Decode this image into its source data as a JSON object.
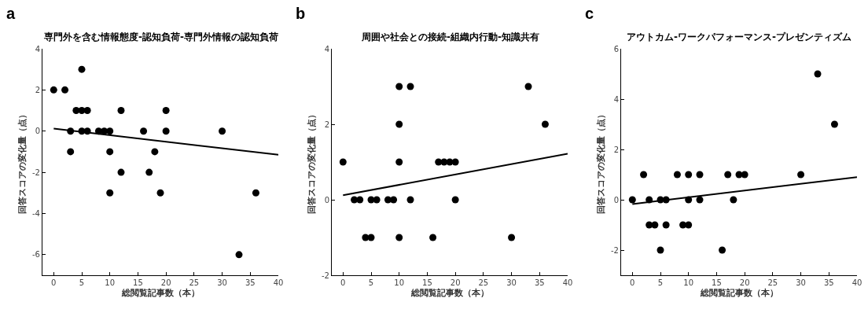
{
  "chart_data": [
    {
      "type": "scatter",
      "title": "専門外を含む情報態度‐認知負荷‐専門外情報の認知負荷",
      "xlabel": "総閲覧記事数（本）",
      "ylabel": "回答スコアの変化量（点）",
      "annotations": [
        "a"
      ],
      "xlim": [
        -2,
        40
      ],
      "xticks": [
        0,
        5,
        10,
        15,
        20,
        25,
        30,
        35,
        40
      ],
      "ylim": [
        -7,
        4
      ],
      "yticks": [
        -6,
        -4,
        -2,
        0,
        2,
        4
      ],
      "series": [
        {
          "type": "scatter",
          "color": "#000000",
          "marker": "circle",
          "x": [
            0,
            2,
            5,
            4,
            5,
            6,
            3,
            5,
            6,
            8,
            9,
            10,
            3,
            12,
            10,
            12,
            10,
            16,
            20,
            20,
            18,
            17,
            19,
            30,
            36,
            33
          ],
          "values": [
            2,
            2,
            3,
            1,
            1,
            1,
            0,
            0,
            0,
            0,
            0,
            0,
            -1,
            1,
            -1,
            -2,
            -3,
            0,
            1,
            0,
            -1,
            -2,
            -3,
            0,
            -3,
            -6
          ]
        },
        {
          "type": "line",
          "color": "#000000",
          "marker": "none",
          "line_style": "solid",
          "x": [
            0,
            40
          ],
          "values": [
            0.12,
            -1.15
          ]
        }
      ]
    },
    {
      "type": "scatter",
      "title": "周囲や社会との接続‐組織内行動‐知識共有",
      "xlabel": "総閲覧記事数（本）",
      "ylabel": "回答スコアの変化量（点）",
      "annotations": [
        "b"
      ],
      "xlim": [
        -2,
        40
      ],
      "xticks": [
        0,
        5,
        10,
        15,
        20,
        25,
        30,
        35,
        40
      ],
      "ylim": [
        -2,
        4
      ],
      "yticks": [
        -2,
        0,
        2,
        4
      ],
      "series": [
        {
          "type": "scatter",
          "color": "#000000",
          "marker": "circle",
          "x": [
            0,
            2,
            3,
            5,
            6,
            8,
            9,
            4,
            5,
            10,
            10,
            10,
            10,
            12,
            12,
            16,
            17,
            18,
            19,
            20,
            20,
            30,
            33,
            36
          ],
          "values": [
            1,
            0,
            0,
            0,
            0,
            0,
            0,
            -1,
            -1,
            3,
            2,
            1,
            -1,
            3,
            0,
            -1,
            1,
            1,
            1,
            1,
            0,
            -1,
            3,
            2
          ]
        },
        {
          "type": "line",
          "color": "#000000",
          "marker": "none",
          "line_style": "solid",
          "x": [
            0,
            40
          ],
          "values": [
            0.12,
            1.22
          ]
        }
      ]
    },
    {
      "type": "scatter",
      "title": "アウトカム‐ワークパフォーマンス‐プレゼンティズム",
      "xlabel": "総閲覧記事数（本）",
      "ylabel": "回答スコアの変化量（点）",
      "annotations": [
        "c"
      ],
      "xlim": [
        -2,
        40
      ],
      "xticks": [
        0,
        5,
        10,
        15,
        20,
        25,
        30,
        35,
        40
      ],
      "ylim": [
        -3,
        6
      ],
      "yticks": [
        -2,
        0,
        2,
        4,
        6
      ],
      "series": [
        {
          "type": "scatter",
          "color": "#000000",
          "marker": "circle",
          "x": [
            0,
            2,
            3,
            3,
            4,
            5,
            5,
            6,
            6,
            8,
            9,
            10,
            10,
            10,
            12,
            12,
            16,
            17,
            18,
            19,
            20,
            30,
            33,
            36
          ],
          "values": [
            0,
            1,
            0,
            -1,
            -1,
            0,
            -2,
            0,
            -1,
            1,
            -1,
            1,
            0,
            -1,
            1,
            0,
            -2,
            1,
            0,
            1,
            1,
            1,
            5,
            3
          ]
        },
        {
          "type": "line",
          "color": "#000000",
          "marker": "none",
          "line_style": "solid",
          "x": [
            0,
            40
          ],
          "values": [
            -0.17,
            0.9
          ]
        }
      ]
    }
  ]
}
